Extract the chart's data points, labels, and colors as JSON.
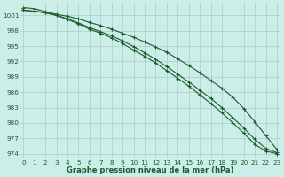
{
  "title": "Graphe pression niveau de la mer (hPa)",
  "background_color": "#cceee8",
  "grid_color": "#aacccc",
  "line_color": "#1a5c2a",
  "x_values": [
    0,
    1,
    2,
    3,
    4,
    5,
    6,
    7,
    8,
    9,
    10,
    11,
    12,
    13,
    14,
    15,
    16,
    17,
    18,
    19,
    20,
    21,
    22,
    23
  ],
  "series1": [
    1002.5,
    1002.3,
    1001.7,
    1001.2,
    1000.8,
    1000.3,
    999.6,
    999.0,
    998.3,
    997.5,
    996.7,
    995.8,
    994.8,
    993.8,
    992.5,
    991.2,
    989.8,
    988.3,
    986.8,
    985.0,
    982.8,
    980.2,
    977.5,
    974.8
  ],
  "series2": [
    1002.0,
    1001.8,
    1001.5,
    1001.0,
    1000.3,
    999.5,
    998.6,
    997.8,
    997.0,
    996.0,
    994.9,
    993.7,
    992.4,
    991.0,
    989.5,
    988.0,
    986.4,
    984.8,
    983.0,
    981.0,
    979.0,
    976.8,
    975.0,
    974.2
  ],
  "series3": [
    1002.0,
    1001.8,
    1001.5,
    1001.0,
    1000.2,
    999.3,
    998.3,
    997.5,
    996.6,
    995.5,
    994.2,
    993.0,
    991.7,
    990.2,
    988.7,
    987.2,
    985.5,
    983.8,
    982.0,
    980.0,
    978.0,
    975.8,
    974.5,
    974.0
  ],
  "ylim_min": 973,
  "ylim_max": 1003.5,
  "yticks": [
    974,
    977,
    980,
    983,
    986,
    989,
    992,
    995,
    998,
    1001
  ],
  "xlim_min": -0.3,
  "xlim_max": 23.3,
  "marker": "+",
  "marker_size": 3.5,
  "linewidth": 0.8,
  "title_fontsize": 6.0,
  "tick_fontsize": 5.2
}
